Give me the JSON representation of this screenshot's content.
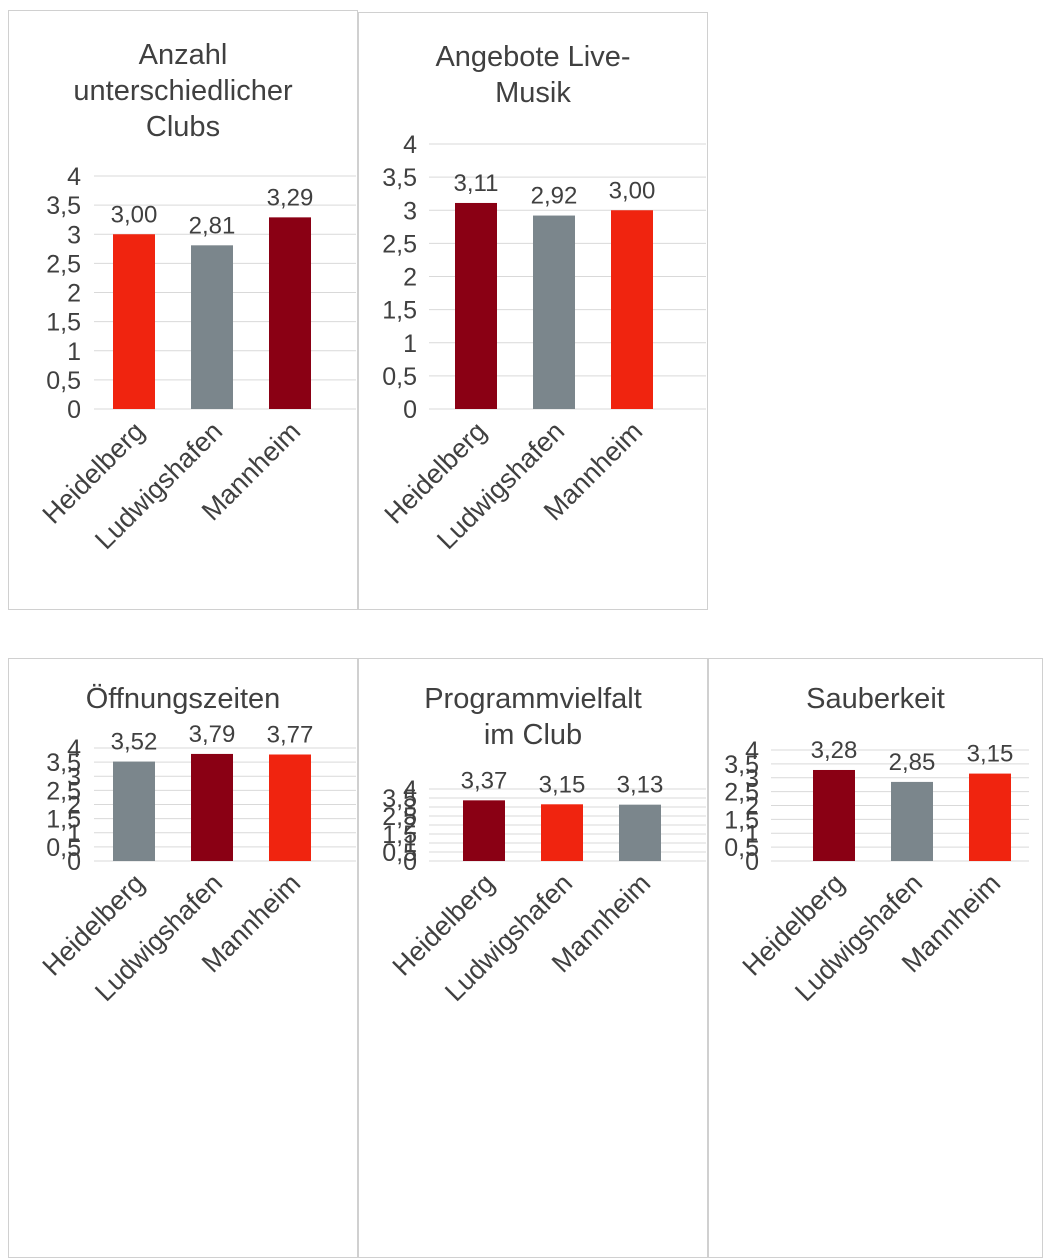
{
  "colors": {
    "red": "#f0240f",
    "darkred": "#8a0014",
    "gray": "#7b868c",
    "grid": "#d9d9d9",
    "text": "#404040"
  },
  "chart_data": [
    {
      "type": "bar",
      "title": "Anzahl unterschiedlicher Clubs",
      "title_lines": [
        "Anzahl",
        "unterschiedlicher",
        "Clubs"
      ],
      "categories": [
        "Heidelberg",
        "Ludwigshafen",
        "Mannheim"
      ],
      "values": [
        3.0,
        2.81,
        3.29
      ],
      "value_labels": [
        "3,00",
        "2,81",
        "3,29"
      ],
      "bar_colors": [
        "red",
        "gray",
        "darkred"
      ],
      "ylim": [
        0,
        4
      ],
      "yticks": [
        "0",
        "0,5",
        "1",
        "1,5",
        "2",
        "2,5",
        "3",
        "3,5",
        "4"
      ],
      "grid": true
    },
    {
      "type": "bar",
      "title": "Angebote Live-Musik",
      "title_lines": [
        "Angebote Live-",
        "Musik"
      ],
      "categories": [
        "Heidelberg",
        "Ludwigshafen",
        "Mannheim"
      ],
      "values": [
        3.11,
        2.92,
        3.0
      ],
      "value_labels": [
        "3,11",
        "2,92",
        "3,00"
      ],
      "bar_colors": [
        "darkred",
        "gray",
        "red"
      ],
      "ylim": [
        0,
        4
      ],
      "yticks": [
        "0",
        "0,5",
        "1",
        "1,5",
        "2",
        "2,5",
        "3",
        "3,5",
        "4"
      ],
      "grid": true
    },
    {
      "type": "bar",
      "title": "Öffnungszeiten",
      "title_lines": [
        "Öffnungszeiten"
      ],
      "categories": [
        "Heidelberg",
        "Ludwigshafen",
        "Mannheim"
      ],
      "values": [
        3.52,
        3.79,
        3.77
      ],
      "value_labels": [
        "3,52",
        "3,79",
        "3,77"
      ],
      "bar_colors": [
        "gray",
        "darkred",
        "red"
      ],
      "ylim": [
        0,
        4
      ],
      "yticks": [
        "0",
        "0,5",
        "1",
        "1,5",
        "2",
        "2,5",
        "3",
        "3,5",
        "4"
      ],
      "grid": true
    },
    {
      "type": "bar",
      "title": "Programmvielfalt im Club",
      "title_lines": [
        "Programmvielfalt",
        "im Club"
      ],
      "categories": [
        "Heidelberg",
        "Ludwigshafen",
        "Mannheim"
      ],
      "values": [
        3.37,
        3.15,
        3.13
      ],
      "value_labels": [
        "3,37",
        "3,15",
        "3,13"
      ],
      "bar_colors": [
        "darkred",
        "red",
        "gray"
      ],
      "ylim": [
        0,
        4
      ],
      "yticks": [
        "0",
        "0,5",
        "1",
        "1,5",
        "2",
        "2,5",
        "3",
        "3,5",
        "4"
      ],
      "grid": true
    },
    {
      "type": "bar",
      "title": "Sauberkeit",
      "title_lines": [
        "Sauberkeit"
      ],
      "categories": [
        "Heidelberg",
        "Ludwigshafen",
        "Mannheim"
      ],
      "values": [
        3.28,
        2.85,
        3.15
      ],
      "value_labels": [
        "3,28",
        "2,85",
        "3,15"
      ],
      "bar_colors": [
        "darkred",
        "gray",
        "red"
      ],
      "ylim": [
        0,
        4
      ],
      "yticks": [
        "0",
        "0,5",
        "1",
        "1,5",
        "2",
        "2,5",
        "3",
        "3,5",
        "4"
      ],
      "grid": true
    }
  ]
}
